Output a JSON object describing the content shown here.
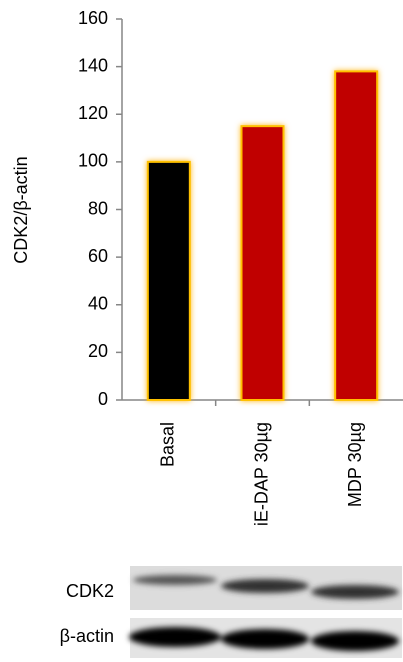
{
  "chart_data": {
    "type": "bar",
    "y_label": "CDK2/β-actin",
    "categories": [
      "Basal",
      "iE-DAP 30µg",
      "MDP 30µg"
    ],
    "values": [
      100,
      115,
      138
    ],
    "colors": [
      "#000000",
      "#c00000",
      "#c00000"
    ],
    "ylim": [
      0,
      160
    ],
    "yticks": [
      0,
      20,
      40,
      60,
      80,
      100,
      120,
      140,
      160
    ],
    "grid": false
  },
  "blot_labels": [
    "CDK2",
    "β-actin"
  ]
}
